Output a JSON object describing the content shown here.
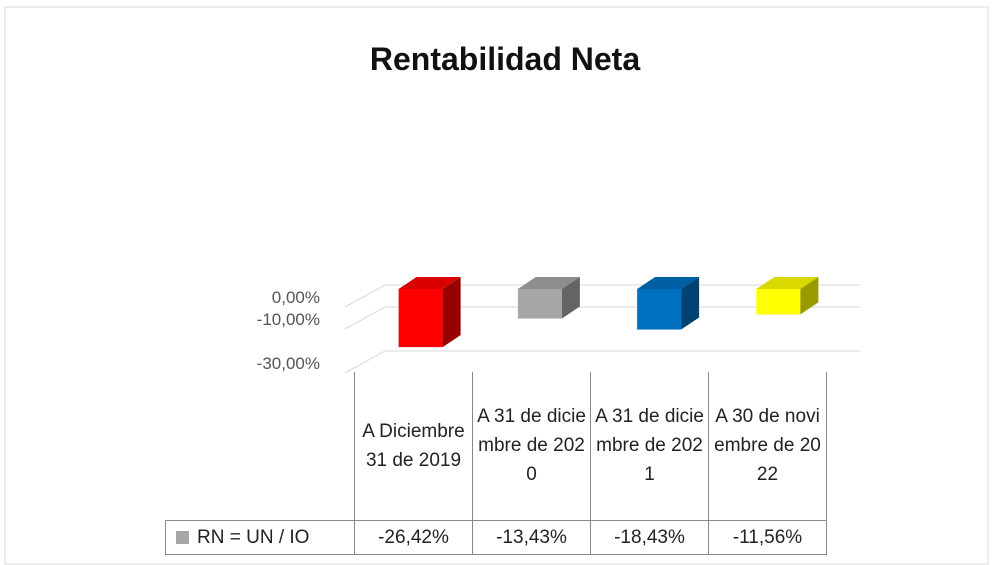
{
  "chart_data": {
    "type": "bar",
    "title": "Rentabilidad Neta",
    "categories": [
      "A Diciembre 31 de 2019",
      "A 31 de diciembre de 2020",
      "A 31 de diciembre de 2021",
      "A 30 de noviembre de 2022"
    ],
    "series": [
      {
        "name": "RN = UN / IO",
        "color": "#a6a6a6",
        "colors": [
          "#ff0000",
          "#a6a6a6",
          "#0070c0",
          "#ffff00"
        ],
        "values": [
          -26.42,
          -13.43,
          -18.43,
          -11.56
        ],
        "value_labels": [
          "-26,42%",
          "-13,43%",
          "-18,43%",
          "-11,56%"
        ]
      }
    ],
    "ylim": [
      -30,
      0
    ],
    "yticks": [
      {
        "value": 0,
        "label": "0,00%"
      },
      {
        "value": -10,
        "label": "-10,00%"
      },
      {
        "value": -30,
        "label": "-30,00%"
      }
    ],
    "grid": true
  }
}
